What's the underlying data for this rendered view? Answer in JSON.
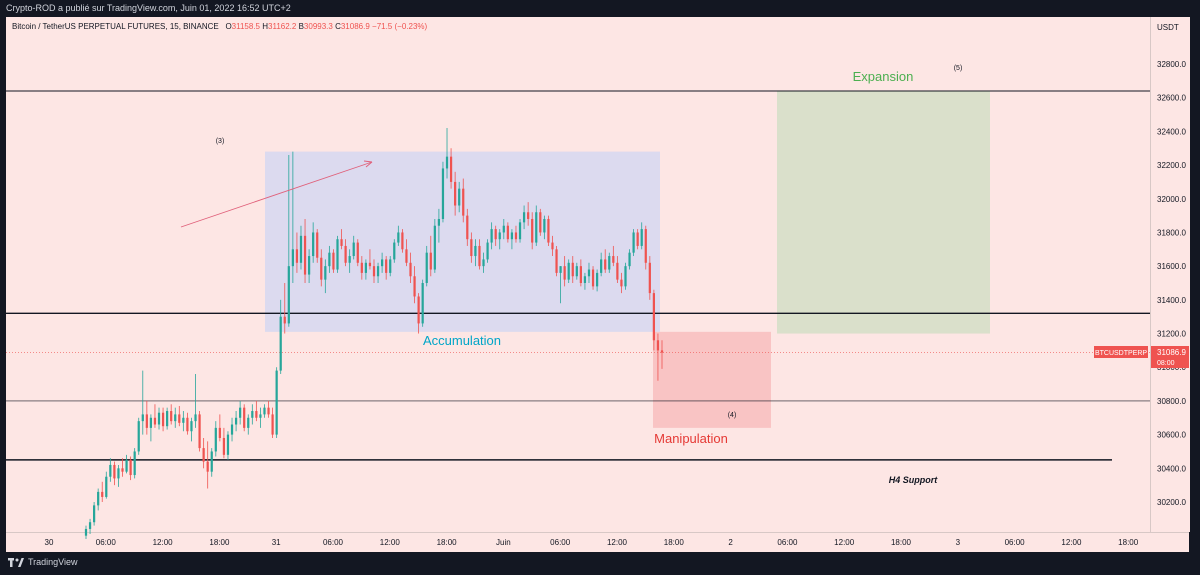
{
  "header": {
    "text": "Crypto-ROD a publié sur TradingView.com, Juin 01, 2022 16:52 UTC+2"
  },
  "footer": {
    "logo_text": "TradingView"
  },
  "legend": {
    "symbol": "Bitcoin / TetherUS PERPETUAL FUTURES, 15, BINANCE",
    "open_label": "O",
    "open": "31158.5",
    "high_label": "H",
    "high": "31162.2",
    "low_label": "B",
    "low": "30993.3",
    "close_label": "C",
    "close": "31086.9",
    "change": "−71.5 (−0.23%)"
  },
  "colors": {
    "background": "#fde6e4",
    "up": "#26a69a",
    "down": "#ef5350",
    "accumulation_box": "#d8d8f0",
    "manipulation_box": "#f8c0c0",
    "expansion_box": "#d6dfc8",
    "accumulation_text": "#00a5c8",
    "expansion_text": "#4caf50",
    "manipulation_text": "#e53935"
  },
  "chart_data": {
    "type": "candlestick",
    "unit": "USDT",
    "ylim": [
      30000,
      33250
    ],
    "y_ticks": [
      "30200.0",
      "30400.0",
      "30600.0",
      "30800.0",
      "31000.0",
      "31200.0",
      "31400.0",
      "31600.0",
      "31800.0",
      "32000.0",
      "32200.0",
      "32400.0",
      "32600.0",
      "32800.0"
    ],
    "x_ticks": [
      "30",
      "06:00",
      "12:00",
      "18:00",
      "31",
      "06:00",
      "12:00",
      "18:00",
      "Juin",
      "06:00",
      "12:00",
      "18:00",
      "2",
      "06:00",
      "12:00",
      "18:00",
      "3",
      "06:00",
      "12:00",
      "18:00"
    ],
    "price_label": {
      "symbol": "BTCUSDTPERP",
      "price": "31086.9",
      "countdown": "08:00",
      "value": 31086.9
    },
    "horizontal_lines": [
      32640,
      31320,
      30800,
      30450
    ],
    "zones": [
      {
        "label": "Accumulation",
        "y_top": 32280,
        "y_bottom": 31210
      },
      {
        "label": "Manipulation",
        "y_top": 31210,
        "y_bottom": 30640
      },
      {
        "label": "Expansion",
        "y_top": 32640,
        "y_bottom": 31200
      }
    ],
    "annotations": [
      "(3)",
      "(4)",
      "(5)",
      "H4 Support"
    ],
    "series": [
      {
        "o": 30000,
        "h": 30060,
        "l": 29980,
        "c": 30040
      },
      {
        "o": 30040,
        "h": 30100,
        "l": 30010,
        "c": 30080
      },
      {
        "o": 30080,
        "h": 30200,
        "l": 30060,
        "c": 30180
      },
      {
        "o": 30180,
        "h": 30280,
        "l": 30150,
        "c": 30260
      },
      {
        "o": 30260,
        "h": 30320,
        "l": 30200,
        "c": 30230
      },
      {
        "o": 30230,
        "h": 30380,
        "l": 30220,
        "c": 30350
      },
      {
        "o": 30350,
        "h": 30460,
        "l": 30320,
        "c": 30420
      },
      {
        "o": 30420,
        "h": 30440,
        "l": 30300,
        "c": 30340
      },
      {
        "o": 30340,
        "h": 30420,
        "l": 30290,
        "c": 30400
      },
      {
        "o": 30400,
        "h": 30460,
        "l": 30350,
        "c": 30380
      },
      {
        "o": 30380,
        "h": 30480,
        "l": 30370,
        "c": 30450
      },
      {
        "o": 30450,
        "h": 30470,
        "l": 30330,
        "c": 30360
      },
      {
        "o": 30360,
        "h": 30520,
        "l": 30340,
        "c": 30500
      },
      {
        "o": 30500,
        "h": 30700,
        "l": 30480,
        "c": 30680
      },
      {
        "o": 30680,
        "h": 30980,
        "l": 30600,
        "c": 30720
      },
      {
        "o": 30720,
        "h": 30800,
        "l": 30600,
        "c": 30640
      },
      {
        "o": 30640,
        "h": 30720,
        "l": 30560,
        "c": 30700
      },
      {
        "o": 30700,
        "h": 30780,
        "l": 30640,
        "c": 30660
      },
      {
        "o": 30660,
        "h": 30760,
        "l": 30630,
        "c": 30730
      },
      {
        "o": 30730,
        "h": 30760,
        "l": 30620,
        "c": 30650
      },
      {
        "o": 30650,
        "h": 30760,
        "l": 30630,
        "c": 30740
      },
      {
        "o": 30740,
        "h": 30780,
        "l": 30660,
        "c": 30680
      },
      {
        "o": 30680,
        "h": 30760,
        "l": 30640,
        "c": 30720
      },
      {
        "o": 30720,
        "h": 30770,
        "l": 30650,
        "c": 30670
      },
      {
        "o": 30670,
        "h": 30740,
        "l": 30620,
        "c": 30700
      },
      {
        "o": 30700,
        "h": 30730,
        "l": 30600,
        "c": 30620
      },
      {
        "o": 30620,
        "h": 30700,
        "l": 30560,
        "c": 30680
      },
      {
        "o": 30680,
        "h": 30960,
        "l": 30640,
        "c": 30720
      },
      {
        "o": 30720,
        "h": 30740,
        "l": 30500,
        "c": 30520
      },
      {
        "o": 30520,
        "h": 30580,
        "l": 30400,
        "c": 30440
      },
      {
        "o": 30440,
        "h": 30560,
        "l": 30280,
        "c": 30380
      },
      {
        "o": 30380,
        "h": 30520,
        "l": 30350,
        "c": 30500
      },
      {
        "o": 30500,
        "h": 30680,
        "l": 30470,
        "c": 30640
      },
      {
        "o": 30640,
        "h": 30720,
        "l": 30560,
        "c": 30580
      },
      {
        "o": 30580,
        "h": 30640,
        "l": 30460,
        "c": 30480
      },
      {
        "o": 30480,
        "h": 30620,
        "l": 30450,
        "c": 30600
      },
      {
        "o": 30600,
        "h": 30700,
        "l": 30560,
        "c": 30660
      },
      {
        "o": 30660,
        "h": 30740,
        "l": 30620,
        "c": 30700
      },
      {
        "o": 30700,
        "h": 30800,
        "l": 30660,
        "c": 30760
      },
      {
        "o": 30760,
        "h": 30780,
        "l": 30620,
        "c": 30640
      },
      {
        "o": 30640,
        "h": 30720,
        "l": 30600,
        "c": 30700
      },
      {
        "o": 30700,
        "h": 30780,
        "l": 30660,
        "c": 30740
      },
      {
        "o": 30740,
        "h": 30800,
        "l": 30680,
        "c": 30700
      },
      {
        "o": 30700,
        "h": 30760,
        "l": 30640,
        "c": 30720
      },
      {
        "o": 30720,
        "h": 30780,
        "l": 30700,
        "c": 30760
      },
      {
        "o": 30760,
        "h": 30800,
        "l": 30700,
        "c": 30720
      },
      {
        "o": 30720,
        "h": 30760,
        "l": 30580,
        "c": 30600
      },
      {
        "o": 30600,
        "h": 31000,
        "l": 30580,
        "c": 30980
      },
      {
        "o": 30980,
        "h": 31400,
        "l": 30960,
        "c": 31300
      },
      {
        "o": 31300,
        "h": 31500,
        "l": 31200,
        "c": 31260
      },
      {
        "o": 31260,
        "h": 32260,
        "l": 31240,
        "c": 31600
      },
      {
        "o": 31600,
        "h": 32280,
        "l": 31500,
        "c": 31700
      },
      {
        "o": 31700,
        "h": 31800,
        "l": 31560,
        "c": 31620
      },
      {
        "o": 31620,
        "h": 31840,
        "l": 31580,
        "c": 31780
      },
      {
        "o": 31780,
        "h": 31880,
        "l": 31500,
        "c": 31550
      },
      {
        "o": 31550,
        "h": 31700,
        "l": 31500,
        "c": 31660
      },
      {
        "o": 31660,
        "h": 31860,
        "l": 31620,
        "c": 31800
      },
      {
        "o": 31800,
        "h": 31820,
        "l": 31620,
        "c": 31650
      },
      {
        "o": 31650,
        "h": 31700,
        "l": 31480,
        "c": 31520
      },
      {
        "o": 31520,
        "h": 31640,
        "l": 31440,
        "c": 31600
      },
      {
        "o": 31600,
        "h": 31720,
        "l": 31560,
        "c": 31680
      },
      {
        "o": 31680,
        "h": 31700,
        "l": 31560,
        "c": 31580
      },
      {
        "o": 31580,
        "h": 31780,
        "l": 31560,
        "c": 31760
      },
      {
        "o": 31760,
        "h": 31820,
        "l": 31700,
        "c": 31720
      },
      {
        "o": 31720,
        "h": 31760,
        "l": 31600,
        "c": 31620
      },
      {
        "o": 31620,
        "h": 31700,
        "l": 31560,
        "c": 31660
      },
      {
        "o": 31660,
        "h": 31780,
        "l": 31640,
        "c": 31740
      },
      {
        "o": 31740,
        "h": 31760,
        "l": 31600,
        "c": 31620
      },
      {
        "o": 31620,
        "h": 31660,
        "l": 31520,
        "c": 31560
      },
      {
        "o": 31560,
        "h": 31640,
        "l": 31520,
        "c": 31620
      },
      {
        "o": 31620,
        "h": 31700,
        "l": 31580,
        "c": 31600
      },
      {
        "o": 31600,
        "h": 31640,
        "l": 31500,
        "c": 31540
      },
      {
        "o": 31540,
        "h": 31620,
        "l": 31500,
        "c": 31600
      },
      {
        "o": 31600,
        "h": 31680,
        "l": 31560,
        "c": 31640
      },
      {
        "o": 31640,
        "h": 31660,
        "l": 31520,
        "c": 31560
      },
      {
        "o": 31560,
        "h": 31660,
        "l": 31540,
        "c": 31640
      },
      {
        "o": 31640,
        "h": 31760,
        "l": 31620,
        "c": 31740
      },
      {
        "o": 31740,
        "h": 31840,
        "l": 31720,
        "c": 31800
      },
      {
        "o": 31800,
        "h": 31820,
        "l": 31680,
        "c": 31700
      },
      {
        "o": 31700,
        "h": 31760,
        "l": 31600,
        "c": 31620
      },
      {
        "o": 31620,
        "h": 31680,
        "l": 31500,
        "c": 31540
      },
      {
        "o": 31540,
        "h": 31600,
        "l": 31380,
        "c": 31420
      },
      {
        "o": 31420,
        "h": 31440,
        "l": 31200,
        "c": 31260
      },
      {
        "o": 31260,
        "h": 31520,
        "l": 31240,
        "c": 31500
      },
      {
        "o": 31500,
        "h": 31720,
        "l": 31480,
        "c": 31680
      },
      {
        "o": 31680,
        "h": 31780,
        "l": 31540,
        "c": 31580
      },
      {
        "o": 31580,
        "h": 31880,
        "l": 31560,
        "c": 31840
      },
      {
        "o": 31840,
        "h": 31940,
        "l": 31740,
        "c": 31880
      },
      {
        "o": 31880,
        "h": 32220,
        "l": 31860,
        "c": 32180
      },
      {
        "o": 32180,
        "h": 32420,
        "l": 32120,
        "c": 32250
      },
      {
        "o": 32250,
        "h": 32300,
        "l": 32060,
        "c": 32100
      },
      {
        "o": 32100,
        "h": 32160,
        "l": 31900,
        "c": 31960
      },
      {
        "o": 31960,
        "h": 32100,
        "l": 31920,
        "c": 32060
      },
      {
        "o": 32060,
        "h": 32120,
        "l": 31860,
        "c": 31900
      },
      {
        "o": 31900,
        "h": 31940,
        "l": 31720,
        "c": 31760
      },
      {
        "o": 31760,
        "h": 31800,
        "l": 31620,
        "c": 31660
      },
      {
        "o": 31660,
        "h": 31760,
        "l": 31600,
        "c": 31720
      },
      {
        "o": 31720,
        "h": 31760,
        "l": 31580,
        "c": 31600
      },
      {
        "o": 31600,
        "h": 31680,
        "l": 31560,
        "c": 31640
      },
      {
        "o": 31640,
        "h": 31760,
        "l": 31620,
        "c": 31740
      },
      {
        "o": 31740,
        "h": 31860,
        "l": 31700,
        "c": 31820
      },
      {
        "o": 31820,
        "h": 31840,
        "l": 31720,
        "c": 31760
      },
      {
        "o": 31760,
        "h": 31820,
        "l": 31700,
        "c": 31800
      },
      {
        "o": 31800,
        "h": 31880,
        "l": 31760,
        "c": 31840
      },
      {
        "o": 31840,
        "h": 31860,
        "l": 31740,
        "c": 31760
      },
      {
        "o": 31760,
        "h": 31820,
        "l": 31700,
        "c": 31800
      },
      {
        "o": 31800,
        "h": 31840,
        "l": 31740,
        "c": 31760
      },
      {
        "o": 31760,
        "h": 31880,
        "l": 31740,
        "c": 31860
      },
      {
        "o": 31860,
        "h": 31960,
        "l": 31820,
        "c": 31920
      },
      {
        "o": 31920,
        "h": 31980,
        "l": 31840,
        "c": 31880
      },
      {
        "o": 31880,
        "h": 31920,
        "l": 31700,
        "c": 31740
      },
      {
        "o": 31740,
        "h": 31960,
        "l": 31720,
        "c": 31920
      },
      {
        "o": 31920,
        "h": 31940,
        "l": 31780,
        "c": 31800
      },
      {
        "o": 31800,
        "h": 31900,
        "l": 31760,
        "c": 31880
      },
      {
        "o": 31880,
        "h": 31900,
        "l": 31720,
        "c": 31740
      },
      {
        "o": 31740,
        "h": 31780,
        "l": 31660,
        "c": 31700
      },
      {
        "o": 31700,
        "h": 31720,
        "l": 31540,
        "c": 31560
      },
      {
        "o": 31560,
        "h": 31600,
        "l": 31380,
        "c": 31600
      },
      {
        "o": 31600,
        "h": 31660,
        "l": 31480,
        "c": 31520
      },
      {
        "o": 31520,
        "h": 31640,
        "l": 31500,
        "c": 31620
      },
      {
        "o": 31620,
        "h": 31660,
        "l": 31500,
        "c": 31540
      },
      {
        "o": 31540,
        "h": 31620,
        "l": 31520,
        "c": 31600
      },
      {
        "o": 31600,
        "h": 31640,
        "l": 31480,
        "c": 31500
      },
      {
        "o": 31500,
        "h": 31560,
        "l": 31460,
        "c": 31540
      },
      {
        "o": 31540,
        "h": 31620,
        "l": 31500,
        "c": 31580
      },
      {
        "o": 31580,
        "h": 31600,
        "l": 31460,
        "c": 31480
      },
      {
        "o": 31480,
        "h": 31580,
        "l": 31450,
        "c": 31560
      },
      {
        "o": 31560,
        "h": 31680,
        "l": 31540,
        "c": 31640
      },
      {
        "o": 31640,
        "h": 31700,
        "l": 31560,
        "c": 31580
      },
      {
        "o": 31580,
        "h": 31680,
        "l": 31560,
        "c": 31660
      },
      {
        "o": 31660,
        "h": 31720,
        "l": 31600,
        "c": 31620
      },
      {
        "o": 31620,
        "h": 31660,
        "l": 31500,
        "c": 31520
      },
      {
        "o": 31520,
        "h": 31560,
        "l": 31440,
        "c": 31480
      },
      {
        "o": 31480,
        "h": 31620,
        "l": 31460,
        "c": 31600
      },
      {
        "o": 31600,
        "h": 31700,
        "l": 31580,
        "c": 31680
      },
      {
        "o": 31680,
        "h": 31820,
        "l": 31660,
        "c": 31800
      },
      {
        "o": 31800,
        "h": 31820,
        "l": 31700,
        "c": 31720
      },
      {
        "o": 31720,
        "h": 31860,
        "l": 31700,
        "c": 31820
      },
      {
        "o": 31820,
        "h": 31840,
        "l": 31580,
        "c": 31620
      },
      {
        "o": 31620,
        "h": 31660,
        "l": 31400,
        "c": 31440
      },
      {
        "o": 31440,
        "h": 31460,
        "l": 31100,
        "c": 31160
      },
      {
        "o": 31160,
        "h": 31200,
        "l": 30920,
        "c": 31100
      },
      {
        "o": 31100,
        "h": 31160,
        "l": 30990,
        "c": 31087
      }
    ]
  }
}
